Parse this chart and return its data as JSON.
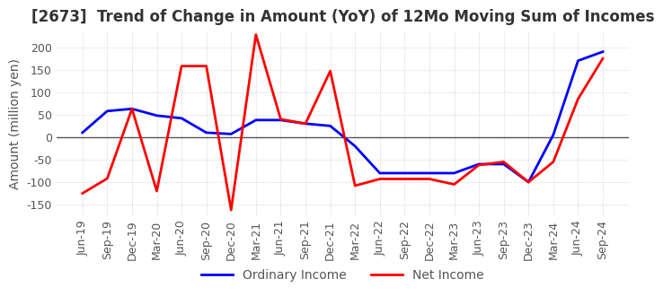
{
  "title": "[2673]  Trend of Change in Amount (YoY) of 12Mo Moving Sum of Incomes",
  "ylabel": "Amount (million yen)",
  "x_labels": [
    "Jun-19",
    "Sep-19",
    "Dec-19",
    "Mar-20",
    "Jun-20",
    "Sep-20",
    "Dec-20",
    "Mar-21",
    "Jun-21",
    "Sep-21",
    "Dec-21",
    "Mar-22",
    "Jun-22",
    "Sep-22",
    "Dec-22",
    "Mar-23",
    "Jun-23",
    "Sep-23",
    "Dec-23",
    "Mar-24",
    "Jun-24",
    "Sep-24"
  ],
  "ordinary_income": [
    10,
    58,
    63,
    48,
    42,
    10,
    7,
    38,
    38,
    30,
    25,
    -20,
    -80,
    -80,
    -80,
    -80,
    -60,
    -60,
    -100,
    5,
    170,
    190
  ],
  "net_income": [
    -125,
    -92,
    63,
    -120,
    158,
    158,
    -162,
    228,
    40,
    30,
    147,
    -108,
    -93,
    -93,
    -93,
    -105,
    -62,
    -55,
    -100,
    -55,
    85,
    175
  ],
  "ylim": [
    -175,
    235
  ],
  "yticks": [
    -150,
    -100,
    -50,
    0,
    50,
    100,
    150,
    200
  ],
  "ordinary_color": "#0000ff",
  "net_color": "#ff0000",
  "grid_color": "#c8c8c8",
  "grid_style": "dotted",
  "background_color": "#ffffff",
  "zero_line_color": "#555555",
  "title_fontsize": 12,
  "tick_fontsize": 9,
  "ylabel_fontsize": 10,
  "legend_fontsize": 10,
  "linewidth": 2.0
}
